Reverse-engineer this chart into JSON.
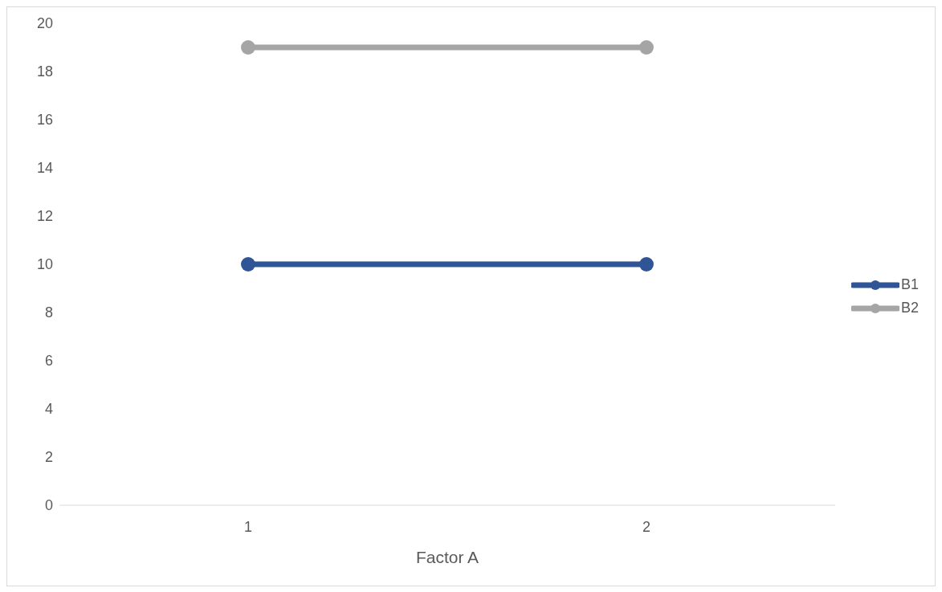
{
  "chart_data": {
    "type": "line",
    "xlabel": "Factor A",
    "categories": [
      "1",
      "2"
    ],
    "series": [
      {
        "name": "B1",
        "color": "#2f5597",
        "values": [
          10,
          10
        ]
      },
      {
        "name": "B2",
        "color": "#a5a5a5",
        "values": [
          19,
          19
        ]
      }
    ],
    "ylim": [
      0,
      20
    ],
    "yticks": [
      0,
      2,
      4,
      6,
      8,
      10,
      12,
      14,
      16,
      18,
      20
    ],
    "legend": "right",
    "marker": "circle"
  }
}
